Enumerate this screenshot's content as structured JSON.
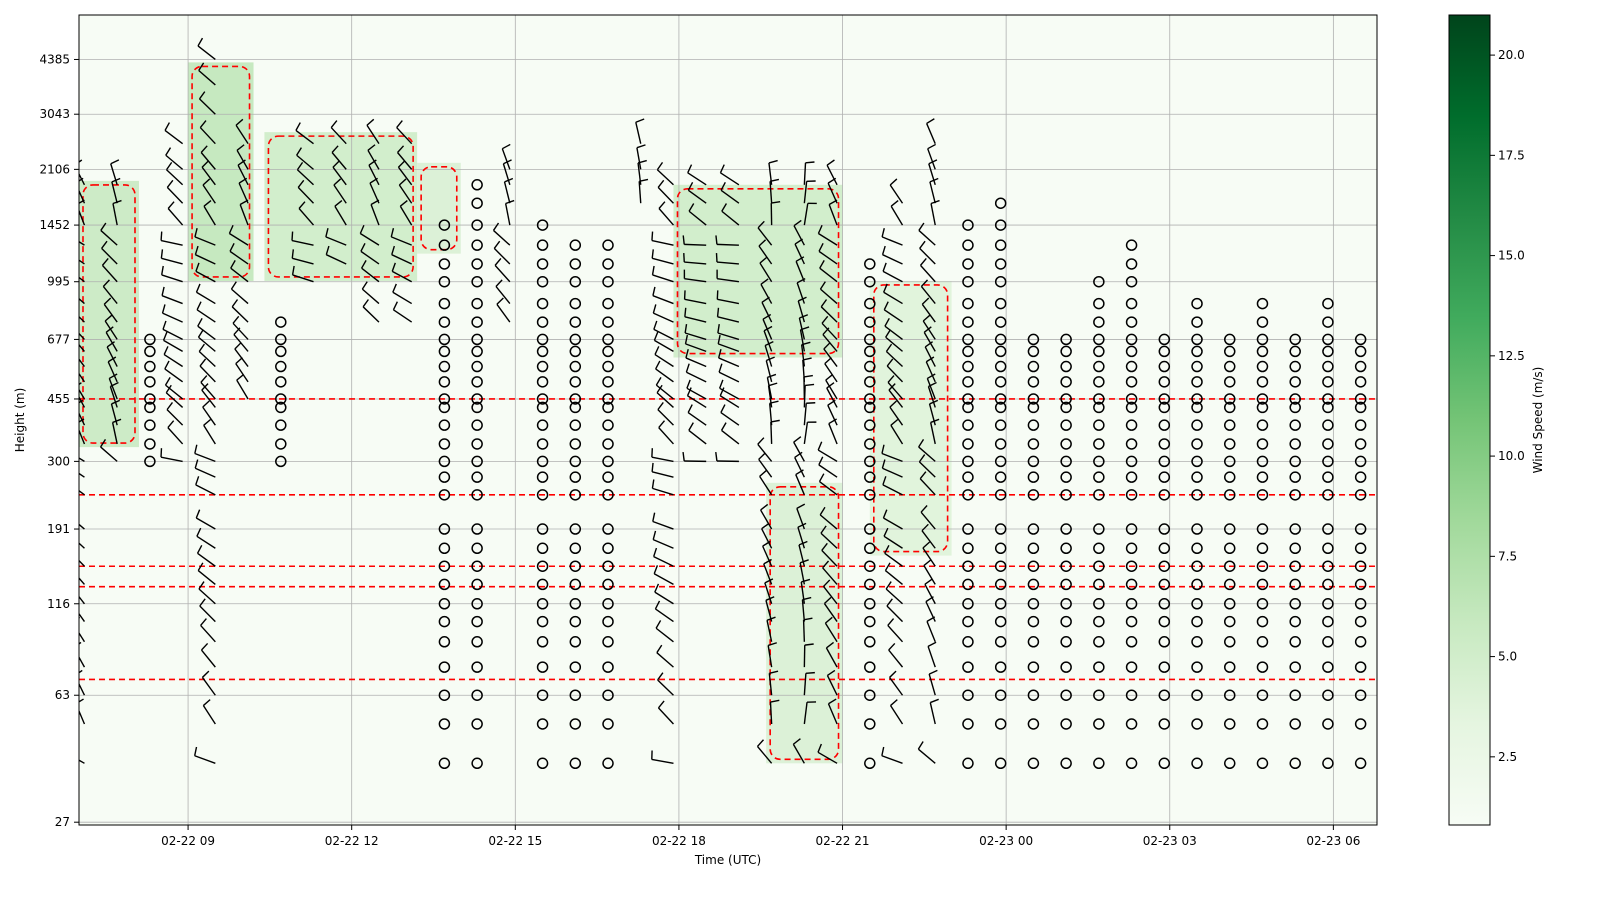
{
  "chart_data": {
    "type": "heatmap",
    "title": "",
    "xlabel": "Time (UTC)",
    "ylabel": "Height (m)",
    "x_ticks": [
      {
        "t": 9,
        "label": "02-22 09"
      },
      {
        "t": 12,
        "label": "02-22 12"
      },
      {
        "t": 15,
        "label": "02-22 15"
      },
      {
        "t": 18,
        "label": "02-22 18"
      },
      {
        "t": 21,
        "label": "02-22 21"
      },
      {
        "t": 24,
        "label": "02-23 00"
      },
      {
        "t": 27,
        "label": "02-23 03"
      },
      {
        "t": 30,
        "label": "02-23 06"
      }
    ],
    "xlim": [
      7.0,
      30.8
    ],
    "y_scale": "log",
    "y_ticks": [
      27,
      63,
      116,
      191,
      300,
      455,
      677,
      995,
      1452,
      2106,
      3043,
      4385
    ],
    "ylim": [
      26.5,
      5900
    ],
    "grid": true,
    "colorbar": {
      "label": "Wind Speed (m/s)",
      "range": [
        0.8,
        21.0
      ],
      "ticks": [
        2.5,
        5.0,
        7.5,
        10.0,
        12.5,
        15.0,
        17.5,
        20.0
      ],
      "colors": [
        "#f7fcf5",
        "#e5f5e0",
        "#c7e9c0",
        "#a1d99b",
        "#74c476",
        "#41ab5d",
        "#238b45",
        "#006d2c",
        "#00441b"
      ]
    },
    "speed_regions": [
      {
        "t0": 7.0,
        "t1": 8.1,
        "h0": 330,
        "h1": 1950,
        "speed": 6.0
      },
      {
        "t0": 9.0,
        "t1": 10.2,
        "h0": 1000,
        "h1": 4300,
        "speed": 6.5
      },
      {
        "t0": 10.4,
        "t1": 13.2,
        "h0": 1000,
        "h1": 2700,
        "speed": 5.5
      },
      {
        "t0": 13.2,
        "t1": 14.0,
        "h0": 1200,
        "h1": 2200,
        "speed": 4.5
      },
      {
        "t0": 17.9,
        "t1": 21.0,
        "h0": 600,
        "h1": 1900,
        "speed": 5.5
      },
      {
        "t0": 19.6,
        "t1": 21.0,
        "h0": 40,
        "h1": 260,
        "speed": 4.5
      },
      {
        "t0": 21.5,
        "t1": 23.0,
        "h0": 160,
        "h1": 1000,
        "speed": 4.0
      }
    ],
    "marker_legend": {
      "calm": "open circle (calm wind)",
      "barb": "wind barb"
    },
    "heights_levels": [
      40,
      52,
      63,
      76,
      90,
      103,
      116,
      132,
      149,
      168,
      191,
      240,
      270,
      300,
      337,
      382,
      430,
      455,
      510,
      565,
      625,
      677,
      760,
      860,
      995,
      1120,
      1270,
      1452,
      1680,
      1900,
      2106,
      2500,
      3043,
      3700,
      4385
    ],
    "wind_profile_columns": [
      {
        "t": 7.1,
        "kind": "barb",
        "h0": 40,
        "h1": 1900,
        "dir": 320
      },
      {
        "t": 7.7,
        "kind": "barb",
        "h0": 300,
        "h1": 1900,
        "dir": 330
      },
      {
        "t": 8.3,
        "kind": "calm",
        "h0": 300,
        "h1": 677
      },
      {
        "t": 8.9,
        "kind": "barb",
        "h0": 300,
        "h1": 2500,
        "dir": 300
      },
      {
        "t": 9.5,
        "kind": "barb",
        "h0": 40,
        "h1": 4385,
        "dir": 310
      },
      {
        "t": 10.1,
        "kind": "barb",
        "h0": 455,
        "h1": 2900,
        "dir": 320
      },
      {
        "t": 10.7,
        "kind": "calm",
        "h0": 300,
        "h1": 760
      },
      {
        "t": 11.3,
        "kind": "barb",
        "h0": 995,
        "h1": 2900,
        "dir": 300
      },
      {
        "t": 11.9,
        "kind": "barb",
        "h0": 1000,
        "h1": 2900,
        "dir": 310
      },
      {
        "t": 12.5,
        "kind": "barb",
        "h0": 760,
        "h1": 2700,
        "dir": 320
      },
      {
        "t": 13.1,
        "kind": "barb",
        "h0": 760,
        "h1": 2700,
        "dir": 310
      },
      {
        "t": 13.7,
        "kind": "calm",
        "h0": 40,
        "h1": 1452
      },
      {
        "t": 14.3,
        "kind": "calm",
        "h0": 40,
        "h1": 1900
      },
      {
        "t": 14.9,
        "kind": "barb",
        "h0": 760,
        "h1": 2106,
        "dir": 330
      },
      {
        "t": 15.5,
        "kind": "calm",
        "h0": 40,
        "h1": 1452
      },
      {
        "t": 16.1,
        "kind": "calm",
        "h0": 40,
        "h1": 1270
      },
      {
        "t": 16.7,
        "kind": "calm",
        "h0": 40,
        "h1": 1270
      },
      {
        "t": 17.3,
        "kind": "barb",
        "h0": 1600,
        "h1": 2500,
        "dir": 340
      },
      {
        "t": 17.9,
        "kind": "barb",
        "h0": 40,
        "h1": 1900,
        "dir": 300
      },
      {
        "t": 18.5,
        "kind": "barb",
        "h0": 300,
        "h1": 1900,
        "dir": 290
      },
      {
        "t": 19.1,
        "kind": "barb",
        "h0": 300,
        "h1": 1900,
        "dir": 290
      },
      {
        "t": 19.7,
        "kind": "barb",
        "h0": 40,
        "h1": 1900,
        "dir": 340
      },
      {
        "t": 20.3,
        "kind": "barb",
        "h0": 40,
        "h1": 1900,
        "dir": 350
      },
      {
        "t": 20.9,
        "kind": "barb",
        "h0": 40,
        "h1": 1900,
        "dir": 320
      },
      {
        "t": 21.5,
        "kind": "calm",
        "h0": 40,
        "h1": 1120
      },
      {
        "t": 22.1,
        "kind": "barb",
        "h0": 40,
        "h1": 1700,
        "dir": 310
      },
      {
        "t": 22.7,
        "kind": "barb",
        "h0": 40,
        "h1": 2500,
        "dir": 330
      },
      {
        "t": 23.3,
        "kind": "calm",
        "h0": 40,
        "h1": 1452
      },
      {
        "t": 23.9,
        "kind": "calm",
        "h0": 40,
        "h1": 1700
      },
      {
        "t": 24.5,
        "kind": "calm",
        "h0": 40,
        "h1": 677
      },
      {
        "t": 25.1,
        "kind": "calm",
        "h0": 40,
        "h1": 677
      },
      {
        "t": 25.7,
        "kind": "calm",
        "h0": 40,
        "h1": 995
      },
      {
        "t": 26.3,
        "kind": "calm",
        "h0": 40,
        "h1": 1270
      },
      {
        "t": 26.9,
        "kind": "calm",
        "h0": 40,
        "h1": 677
      },
      {
        "t": 27.5,
        "kind": "calm",
        "h0": 40,
        "h1": 860
      },
      {
        "t": 28.1,
        "kind": "calm",
        "h0": 40,
        "h1": 677
      },
      {
        "t": 28.7,
        "kind": "calm",
        "h0": 40,
        "h1": 860
      },
      {
        "t": 29.3,
        "kind": "calm",
        "h0": 40,
        "h1": 677
      },
      {
        "t": 29.9,
        "kind": "calm",
        "h0": 40,
        "h1": 860
      },
      {
        "t": 30.5,
        "kind": "calm",
        "h0": 40,
        "h1": 677
      }
    ]
  }
}
